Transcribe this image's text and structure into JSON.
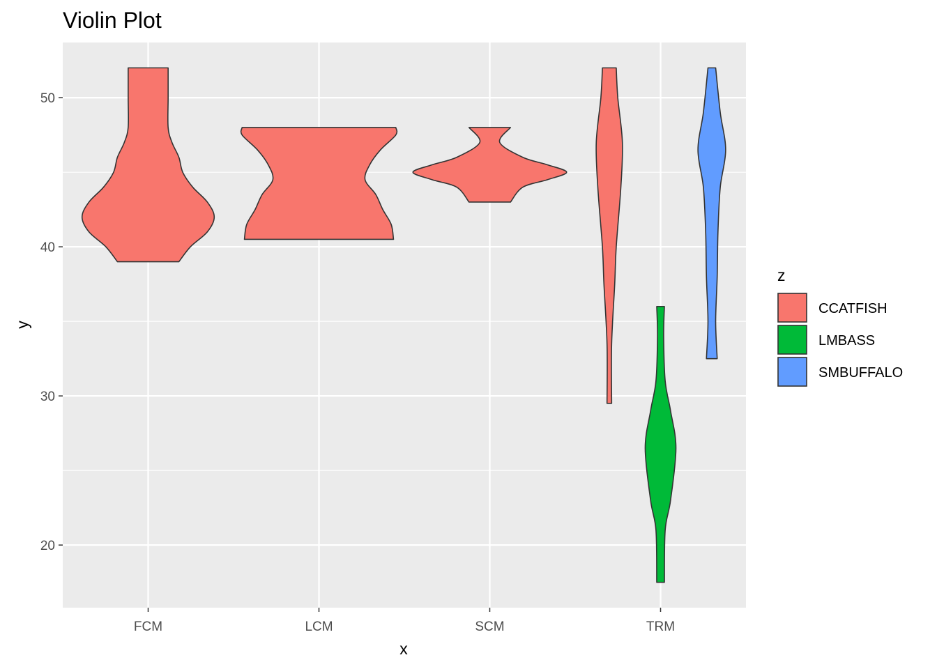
{
  "chart_data": {
    "type": "violin",
    "title": "Violin Plot",
    "xlabel": "x",
    "ylabel": "y",
    "categories": [
      "FCM",
      "LCM",
      "SCM",
      "TRM"
    ],
    "ylim": [
      15.8,
      53.7
    ],
    "y_ticks": [
      20,
      30,
      40,
      50
    ],
    "grid": true,
    "panel_background": "#ebebeb",
    "legend": {
      "title": "z",
      "position": "right",
      "entries": [
        {
          "name": "CCATFISH",
          "color": "#f8766d"
        },
        {
          "name": "LMBASS",
          "color": "#00ba38"
        },
        {
          "name": "SMBUFFALO",
          "color": "#619cff"
        }
      ]
    },
    "violins": [
      {
        "category": "FCM",
        "group": "CCATFISH",
        "y_min": 39,
        "y_max": 52,
        "profile": [
          [
            39,
            0.4
          ],
          [
            40,
            0.55
          ],
          [
            41,
            0.77
          ],
          [
            42,
            0.86
          ],
          [
            43,
            0.77
          ],
          [
            44,
            0.58
          ],
          [
            45,
            0.45
          ],
          [
            46,
            0.4
          ],
          [
            47,
            0.31
          ],
          [
            48,
            0.26
          ],
          [
            50,
            0.26
          ],
          [
            52,
            0.26
          ]
        ]
      },
      {
        "category": "LCM",
        "group": "CCATFISH",
        "y_min": 40.5,
        "y_max": 48,
        "profile": [
          [
            40.5,
            0.97
          ],
          [
            41.5,
            0.94
          ],
          [
            42.5,
            0.83
          ],
          [
            43.5,
            0.74
          ],
          [
            44.5,
            0.6
          ],
          [
            45.5,
            0.66
          ],
          [
            46.5,
            0.8
          ],
          [
            47.5,
            1.0
          ],
          [
            48,
            1.0
          ]
        ]
      },
      {
        "category": "SCM",
        "group": "CCATFISH",
        "y_min": 43,
        "y_max": 48,
        "profile": [
          [
            43,
            0.27
          ],
          [
            44,
            0.43
          ],
          [
            44.5,
            0.75
          ],
          [
            45,
            1.0
          ],
          [
            45.5,
            0.75
          ],
          [
            46,
            0.43
          ],
          [
            47,
            0.13
          ],
          [
            48,
            0.27
          ]
        ]
      },
      {
        "category": "TRM",
        "group": "CCATFISH",
        "offset": -0.3,
        "y_min": 29.5,
        "y_max": 52,
        "profile": [
          [
            29.5,
            0.03
          ],
          [
            33.5,
            0.03
          ],
          [
            37.5,
            0.07
          ],
          [
            40,
            0.09
          ],
          [
            44,
            0.15
          ],
          [
            47,
            0.17
          ],
          [
            50,
            0.11
          ],
          [
            52,
            0.09
          ]
        ]
      },
      {
        "category": "TRM",
        "group": "LMBASS",
        "offset": 0,
        "y_min": 17.5,
        "y_max": 36,
        "profile": [
          [
            17.5,
            0.05
          ],
          [
            21,
            0.06
          ],
          [
            23,
            0.13
          ],
          [
            26.5,
            0.2
          ],
          [
            29,
            0.13
          ],
          [
            31,
            0.06
          ],
          [
            34,
            0.04
          ],
          [
            36,
            0.05
          ]
        ]
      },
      {
        "category": "TRM",
        "group": "SMBUFFALO",
        "offset": 0.3,
        "y_min": 32.5,
        "y_max": 52,
        "profile": [
          [
            32.5,
            0.07
          ],
          [
            35,
            0.05
          ],
          [
            38,
            0.07
          ],
          [
            41,
            0.08
          ],
          [
            44,
            0.11
          ],
          [
            46.5,
            0.18
          ],
          [
            49,
            0.11
          ],
          [
            52,
            0.05
          ]
        ]
      }
    ]
  }
}
